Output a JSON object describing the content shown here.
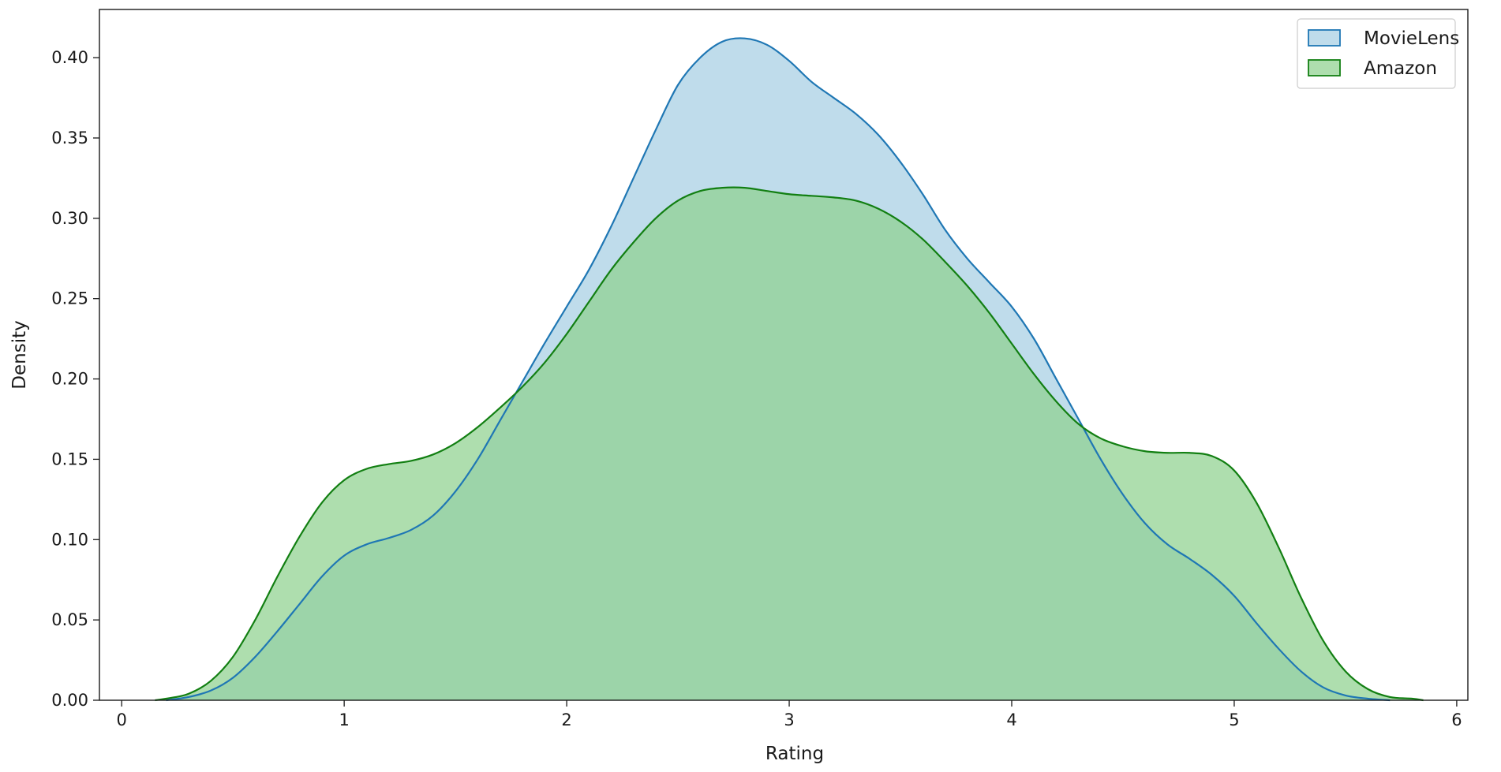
{
  "chart_data": {
    "type": "area",
    "title": "",
    "xlabel": "Rating",
    "ylabel": "Density",
    "xlim": [
      -0.1,
      6.05
    ],
    "ylim": [
      0,
      0.43
    ],
    "x_ticks": [
      0,
      1,
      2,
      3,
      4,
      5,
      6
    ],
    "x_tick_labels": [
      "0",
      "1",
      "2",
      "3",
      "4",
      "5",
      "6"
    ],
    "y_ticks": [
      0,
      0.05,
      0.1,
      0.15,
      0.2,
      0.25,
      0.3,
      0.35,
      0.4
    ],
    "y_tick_labels": [
      "0.00",
      "0.05",
      "0.10",
      "0.15",
      "0.20",
      "0.25",
      "0.30",
      "0.35",
      "0.40"
    ],
    "grid": false,
    "legend_position": "top-right",
    "series": [
      {
        "name": "MovieLens",
        "color": "#1f77b4",
        "fill": "#a6cee3",
        "x": [
          0.2,
          0.3,
          0.4,
          0.5,
          0.6,
          0.7,
          0.8,
          0.9,
          1.0,
          1.1,
          1.2,
          1.3,
          1.4,
          1.5,
          1.6,
          1.7,
          1.8,
          1.9,
          2.0,
          2.1,
          2.2,
          2.3,
          2.4,
          2.5,
          2.6,
          2.7,
          2.8,
          2.9,
          3.0,
          3.1,
          3.2,
          3.3,
          3.4,
          3.5,
          3.6,
          3.7,
          3.8,
          3.9,
          4.0,
          4.1,
          4.2,
          4.3,
          4.4,
          4.5,
          4.6,
          4.7,
          4.8,
          4.9,
          5.0,
          5.1,
          5.2,
          5.3,
          5.4,
          5.5,
          5.6,
          5.7
        ],
        "y": [
          0.0,
          0.002,
          0.006,
          0.014,
          0.027,
          0.043,
          0.06,
          0.077,
          0.09,
          0.097,
          0.101,
          0.106,
          0.115,
          0.13,
          0.15,
          0.174,
          0.198,
          0.222,
          0.245,
          0.268,
          0.295,
          0.325,
          0.355,
          0.383,
          0.4,
          0.41,
          0.412,
          0.408,
          0.398,
          0.385,
          0.375,
          0.365,
          0.352,
          0.335,
          0.315,
          0.293,
          0.275,
          0.26,
          0.245,
          0.225,
          0.2,
          0.175,
          0.15,
          0.128,
          0.11,
          0.097,
          0.088,
          0.078,
          0.065,
          0.048,
          0.032,
          0.018,
          0.008,
          0.003,
          0.001,
          0.0
        ]
      },
      {
        "name": "Amazon",
        "color": "#127f12",
        "fill": "#8fd18f",
        "x": [
          0.15,
          0.2,
          0.3,
          0.4,
          0.5,
          0.6,
          0.7,
          0.8,
          0.9,
          1.0,
          1.1,
          1.2,
          1.3,
          1.4,
          1.5,
          1.6,
          1.7,
          1.8,
          1.9,
          2.0,
          2.1,
          2.2,
          2.3,
          2.4,
          2.5,
          2.6,
          2.7,
          2.8,
          2.9,
          3.0,
          3.1,
          3.2,
          3.3,
          3.4,
          3.5,
          3.6,
          3.7,
          3.8,
          3.9,
          4.0,
          4.1,
          4.2,
          4.3,
          4.4,
          4.5,
          4.6,
          4.7,
          4.8,
          4.9,
          5.0,
          5.1,
          5.2,
          5.3,
          5.4,
          5.5,
          5.6,
          5.7,
          5.8,
          5.85
        ],
        "y": [
          0.0,
          0.001,
          0.004,
          0.012,
          0.027,
          0.05,
          0.077,
          0.102,
          0.123,
          0.137,
          0.144,
          0.147,
          0.149,
          0.153,
          0.16,
          0.17,
          0.182,
          0.195,
          0.21,
          0.228,
          0.248,
          0.268,
          0.285,
          0.3,
          0.311,
          0.317,
          0.319,
          0.319,
          0.317,
          0.315,
          0.314,
          0.313,
          0.311,
          0.306,
          0.298,
          0.287,
          0.273,
          0.258,
          0.241,
          0.222,
          0.203,
          0.186,
          0.172,
          0.163,
          0.158,
          0.155,
          0.154,
          0.154,
          0.152,
          0.143,
          0.123,
          0.095,
          0.064,
          0.037,
          0.018,
          0.007,
          0.002,
          0.001,
          0.0
        ]
      }
    ]
  }
}
